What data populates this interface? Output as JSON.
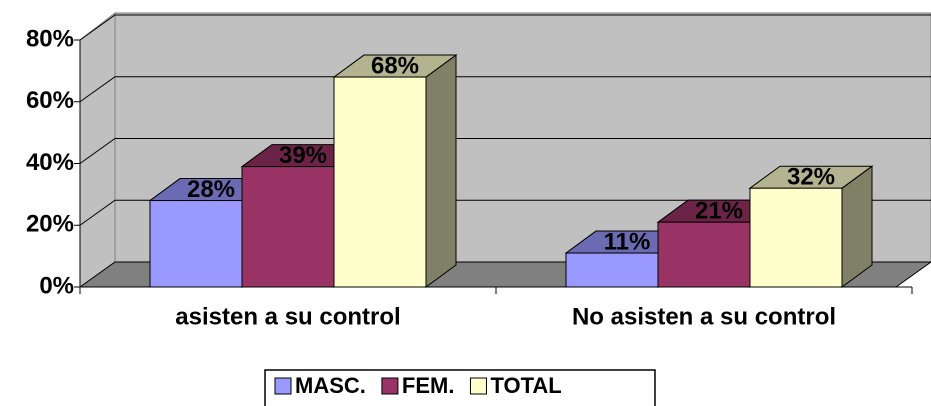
{
  "chart_data": {
    "type": "bar3d",
    "categories": [
      "asisten a su control",
      "No asisten a su control"
    ],
    "series": [
      {
        "name": "MASC.",
        "color": "#9999ff",
        "values": [
          28,
          11
        ],
        "value_labels": [
          "28%",
          "11%"
        ]
      },
      {
        "name": "FEM.",
        "color": "#993366",
        "values": [
          39,
          21
        ],
        "value_labels": [
          "39%",
          "21%"
        ]
      },
      {
        "name": "TOTAL",
        "color": "#ffffcc",
        "values": [
          68,
          32
        ],
        "value_labels": [
          "68%",
          "32%"
        ]
      }
    ],
    "ylim": [
      0,
      80
    ],
    "yticks": [
      {
        "value": 0,
        "label": "0%"
      },
      {
        "value": 20,
        "label": "20%"
      },
      {
        "value": 40,
        "label": "40%"
      },
      {
        "value": 60,
        "label": "60%"
      },
      {
        "value": 80,
        "label": "80%"
      }
    ],
    "grid": true,
    "legend": "bottom"
  }
}
